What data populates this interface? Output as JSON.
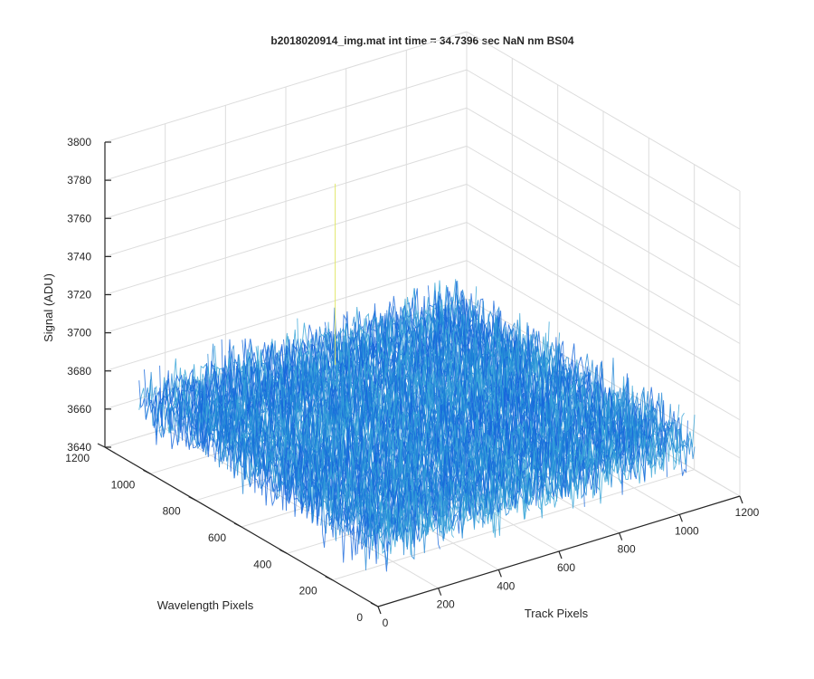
{
  "chart_data": {
    "type": "surface",
    "title": "b2018020914_img.mat int time = 34.7396 sec  NaN nm BS04",
    "xlabel": "Track Pixels",
    "ylabel": "Wavelength Pixels",
    "zlabel": "Signal (ADU)",
    "xlim": [
      0,
      1200
    ],
    "ylim": [
      0,
      1200
    ],
    "zlim": [
      3640,
      3800
    ],
    "x_ticks": [
      "0",
      "200",
      "400",
      "600",
      "800",
      "1000",
      "1200"
    ],
    "y_ticks": [
      "0",
      "200",
      "400",
      "600",
      "800",
      "1000",
      "1200"
    ],
    "z_ticks": [
      "3640",
      "3660",
      "3680",
      "3700",
      "3720",
      "3740",
      "3760",
      "3780",
      "3800"
    ],
    "surface": {
      "x_range": [
        0,
        1050
      ],
      "y_range": [
        0,
        1050
      ],
      "mean_signal": 3675,
      "noise_low": 3650,
      "noise_high": 3700,
      "max_spike": 3770,
      "colormap": [
        "#0a3fd8",
        "#1566dc",
        "#1f86d6",
        "#3aa6d8",
        "#7fd0c0",
        "#e0e86a"
      ]
    },
    "grid": true,
    "legend": "none"
  }
}
